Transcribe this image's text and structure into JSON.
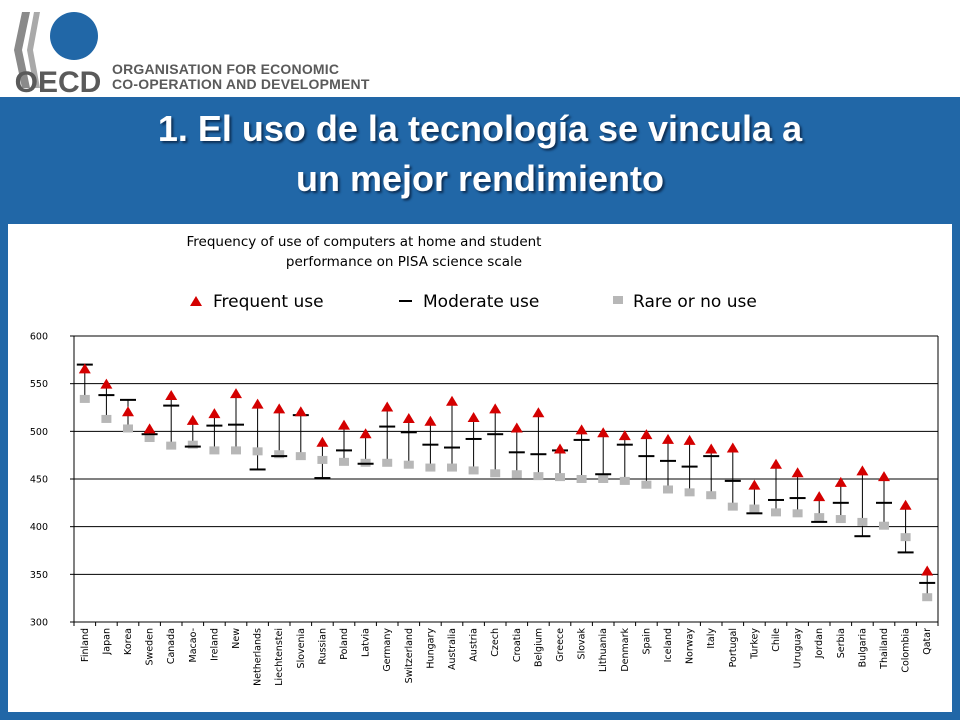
{
  "header": {
    "org_line1": "ORGANISATION FOR ECONOMIC",
    "org_line2": "CO-OPERATION AND DEVELOPMENT",
    "logo_text": "OECD",
    "logo_icon": "oecd-logo-icon"
  },
  "slide": {
    "title_line1": "1. El uso de la tecnología se vincula a",
    "title_line2": "un mejor rendimiento"
  },
  "colors": {
    "band": "#2167a7",
    "frequent": "#d40000",
    "moderate": "#000000",
    "rare": "#b7b7b7"
  },
  "chart_data": {
    "type": "scatter",
    "title_line1": "Frequency of use of computers at home and student",
    "title_line2": "performance on PISA science scale",
    "legend": [
      "Frequent use",
      "Moderate use",
      "Rare or no use"
    ],
    "legend_position": "top",
    "ylim": [
      300,
      600
    ],
    "yticks": [
      300,
      350,
      400,
      450,
      500,
      550,
      600
    ],
    "grid": true,
    "categories": [
      "Finland",
      "Japan",
      "Korea",
      "Sweden",
      "Canada",
      "Macao-",
      "Ireland",
      "New",
      "Netherlands",
      "Liechtenstei",
      "Slovenia",
      "Russian",
      "Poland",
      "Latvia",
      "Germany",
      "Switzerland",
      "Hungary",
      "Australia",
      "Austria",
      "Czech",
      "Croatia",
      "Belgium",
      "Greece",
      "Slovak",
      "Lithuania",
      "Denmark",
      "Spain",
      "Iceland",
      "Norway",
      "Italy",
      "Portugal",
      "Turkey",
      "Chile",
      "Uruguay",
      "Jordan",
      "Serbia",
      "Bulgaria",
      "Thailand",
      "Colombia",
      "Qatar"
    ],
    "series": [
      {
        "name": "Frequent use",
        "marker": "triangle",
        "values": [
          565,
          549,
          520,
          502,
          537,
          511,
          518,
          539,
          528,
          523,
          520,
          488,
          506,
          497,
          525,
          513,
          510,
          531,
          514,
          523,
          503,
          519,
          481,
          501,
          498,
          495,
          496,
          491,
          490,
          481,
          482,
          443,
          465,
          456,
          431,
          446,
          458,
          452,
          422,
          353
        ]
      },
      {
        "name": "Moderate use",
        "marker": "dash",
        "values": [
          570,
          538,
          533,
          497,
          527,
          484,
          506,
          507,
          460,
          474,
          517,
          451,
          480,
          466,
          505,
          499,
          486,
          483,
          492,
          497,
          478,
          476,
          480,
          491,
          455,
          486,
          474,
          469,
          463,
          474,
          448,
          414,
          428,
          430,
          405,
          425,
          390,
          425,
          373,
          341
        ]
      },
      {
        "name": "Rare or no use",
        "marker": "square",
        "values": [
          534,
          513,
          503,
          493,
          485,
          486,
          480,
          480,
          479,
          476,
          474,
          470,
          468,
          467,
          467,
          465,
          462,
          462,
          459,
          456,
          455,
          453,
          452,
          450,
          450,
          448,
          444,
          439,
          436,
          433,
          421,
          419,
          415,
          414,
          410,
          408,
          405,
          401,
          389,
          326
        ]
      }
    ]
  }
}
